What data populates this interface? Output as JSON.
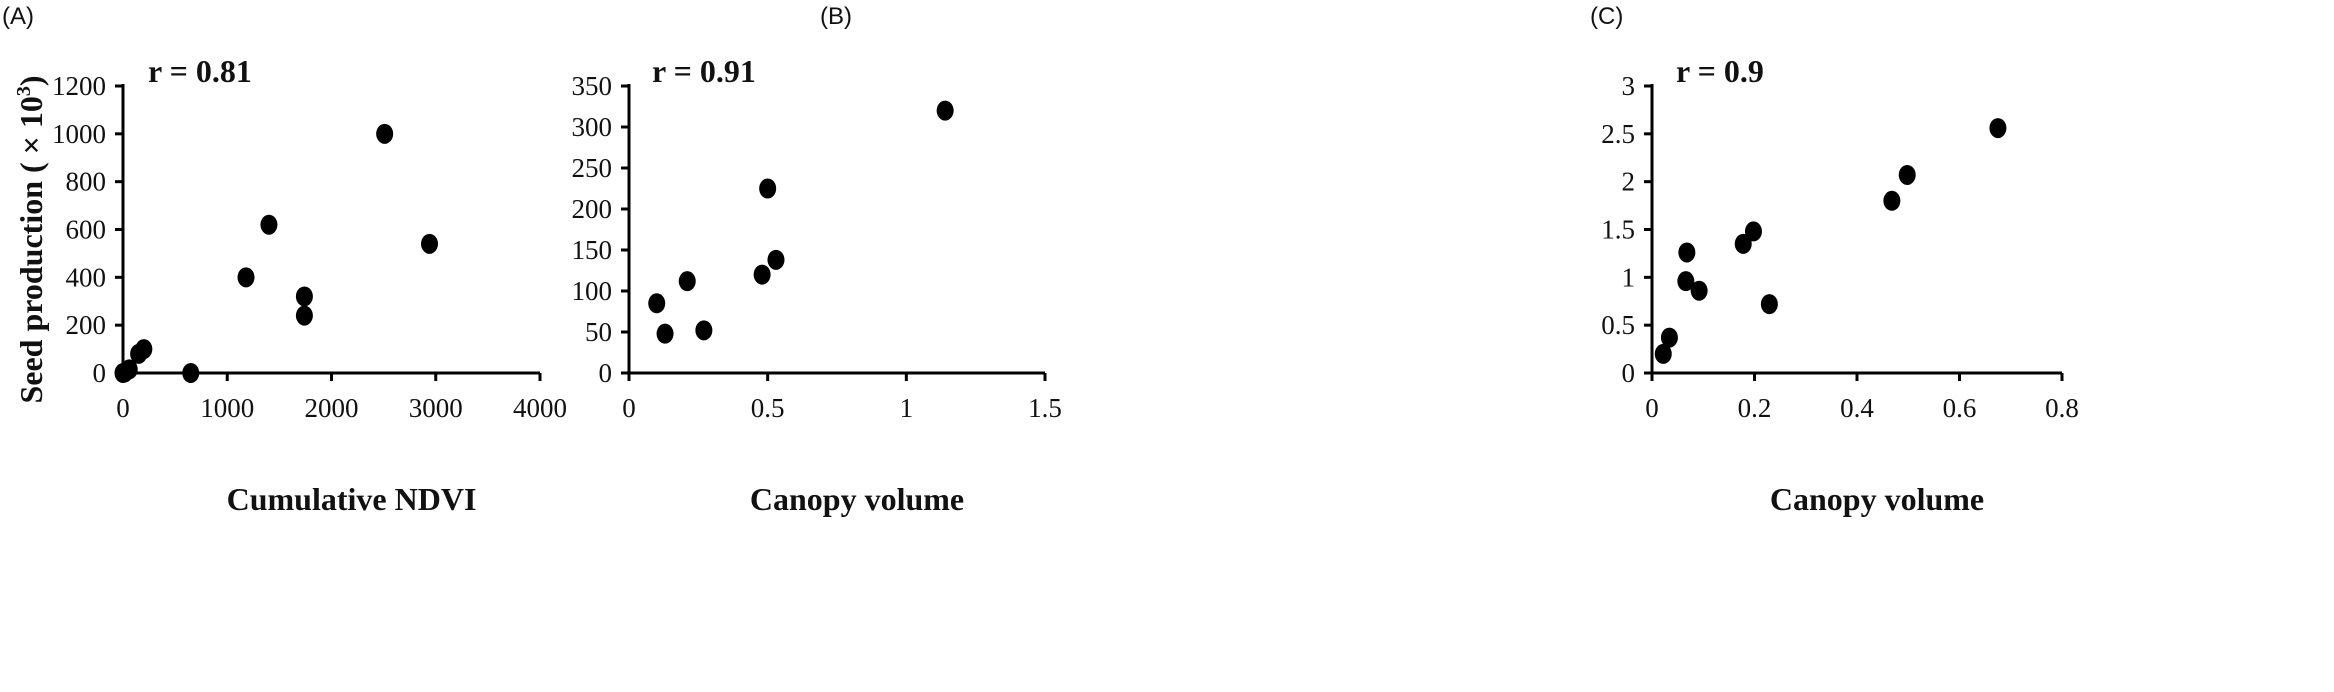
{
  "chart_data": [
    {
      "type": "scatter",
      "panel_label": "(A)",
      "annotation": "r = 0.81",
      "xlabel": "Cumulative NDVI",
      "ylabel": "Seed production ( × 10",
      "ylabel_sup": "3",
      "ylabel_end": ")",
      "xlim": [
        0,
        4000
      ],
      "ylim": [
        0,
        1200
      ],
      "xticks": [
        0,
        1000,
        2000,
        3000,
        4000
      ],
      "yticks": [
        0,
        200,
        400,
        600,
        800,
        1000,
        1200
      ],
      "grid": false,
      "points": [
        {
          "x": 0,
          "y": 0
        },
        {
          "x": 15,
          "y": 2
        },
        {
          "x": 60,
          "y": 15
        },
        {
          "x": 150,
          "y": 80
        },
        {
          "x": 200,
          "y": 100
        },
        {
          "x": 650,
          "y": 0
        },
        {
          "x": 1180,
          "y": 400
        },
        {
          "x": 1400,
          "y": 620
        },
        {
          "x": 1740,
          "y": 320
        },
        {
          "x": 1740,
          "y": 240
        },
        {
          "x": 2510,
          "y": 1000
        },
        {
          "x": 2940,
          "y": 540
        }
      ]
    },
    {
      "type": "scatter",
      "panel_label": "(B)",
      "annotation": "r = 0.91",
      "xlabel": "Canopy volume",
      "ylabel": "",
      "xlim": [
        0,
        1.5
      ],
      "ylim": [
        0,
        350
      ],
      "xticks": [
        0,
        0.5,
        1,
        1.5
      ],
      "yticks": [
        0,
        50,
        100,
        150,
        200,
        250,
        300,
        350
      ],
      "grid": false,
      "points": [
        {
          "x": 0.1,
          "y": 85
        },
        {
          "x": 0.13,
          "y": 48
        },
        {
          "x": 0.21,
          "y": 112
        },
        {
          "x": 0.27,
          "y": 52
        },
        {
          "x": 0.48,
          "y": 120
        },
        {
          "x": 0.5,
          "y": 225
        },
        {
          "x": 0.53,
          "y": 138
        },
        {
          "x": 1.14,
          "y": 320
        }
      ]
    },
    {
      "type": "scatter",
      "panel_label": "(C)",
      "annotation": "r = 0.9",
      "xlabel": "Canopy volume",
      "ylabel": "",
      "xlim": [
        0,
        0.8
      ],
      "ylim": [
        0,
        3
      ],
      "xticks": [
        0,
        0.2,
        0.4,
        0.6,
        0.8
      ],
      "yticks": [
        0,
        0.5,
        1,
        1.5,
        2,
        2.5,
        3
      ],
      "grid": false,
      "points": [
        {
          "x": 0.022,
          "y": 0.2
        },
        {
          "x": 0.034,
          "y": 0.37
        },
        {
          "x": 0.068,
          "y": 1.26
        },
        {
          "x": 0.066,
          "y": 0.96
        },
        {
          "x": 0.092,
          "y": 0.86
        },
        {
          "x": 0.178,
          "y": 1.35
        },
        {
          "x": 0.198,
          "y": 1.48
        },
        {
          "x": 0.229,
          "y": 0.72
        },
        {
          "x": 0.468,
          "y": 1.8
        },
        {
          "x": 0.498,
          "y": 2.07
        },
        {
          "x": 0.675,
          "y": 2.56
        }
      ]
    }
  ],
  "colors": {
    "marker": "#000000",
    "axis": "#000000"
  }
}
